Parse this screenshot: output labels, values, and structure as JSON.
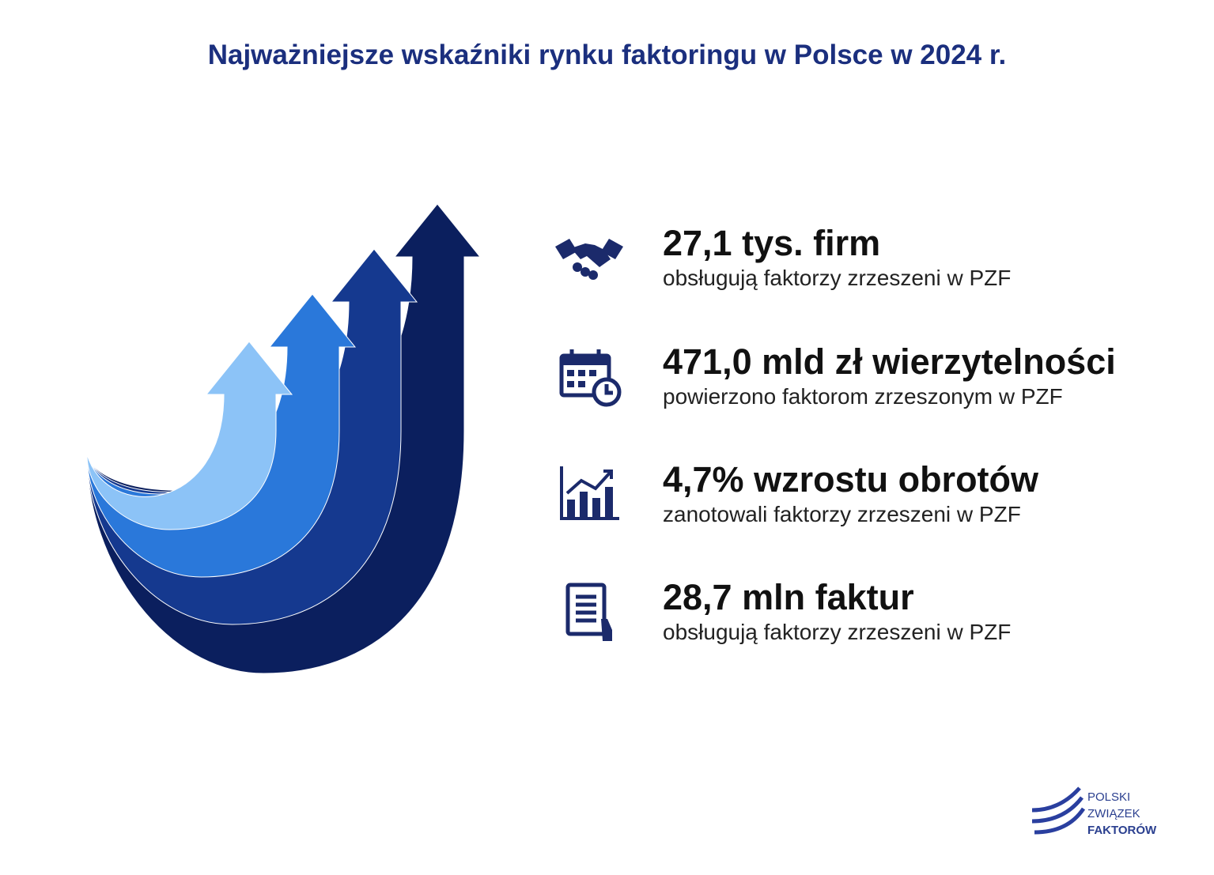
{
  "title": "Najważniejsze wskaźniki rynku faktoringu w Polsce w 2024 r.",
  "stats": [
    {
      "headline": "27,1 tys. firm",
      "description": "obsługują faktorzy zrzeszeni w PZF"
    },
    {
      "headline": "471,0 mld zł wierzytelności",
      "description": "powierzono faktorom zrzeszonym w PZF"
    },
    {
      "headline": "4,7% wzrostu obrotów",
      "description": "zanotowali faktorzy zrzeszeni w PZF"
    },
    {
      "headline": "28,7 mln faktur",
      "description": "obsługują faktorzy zrzeszeni w PZF"
    }
  ],
  "logo": {
    "lines": [
      "POLSKI",
      "ZWIĄZEK",
      "FAKTORÓW"
    ]
  }
}
